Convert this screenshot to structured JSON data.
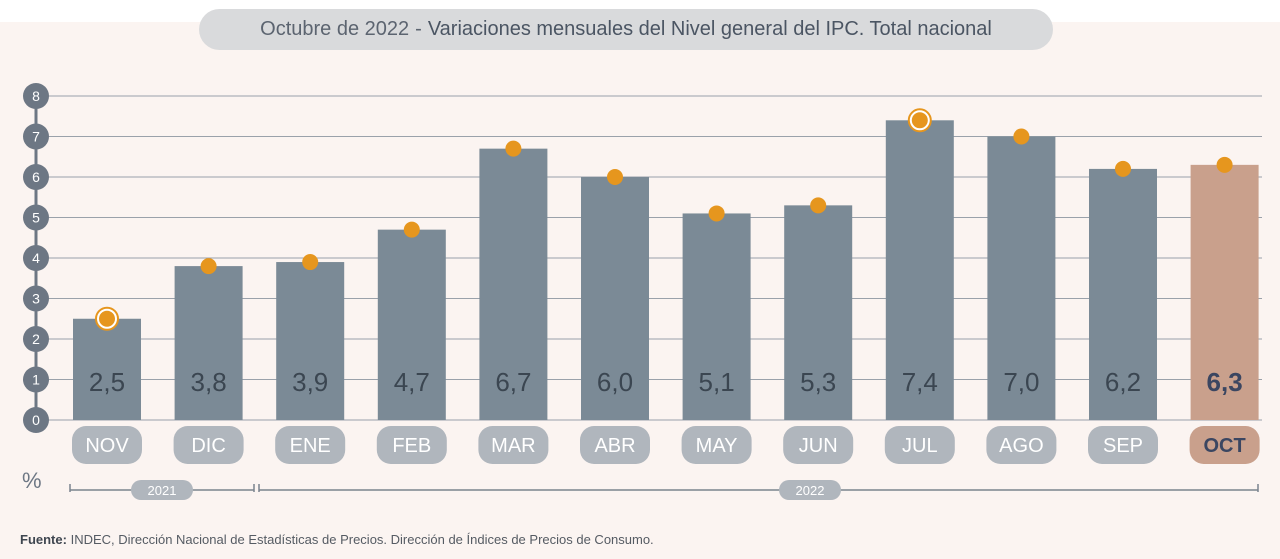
{
  "header": {
    "date": "Octubre de 2022",
    "separator": "-",
    "title": "Variaciones mensuales del Nivel general del IPC. Total nacional"
  },
  "chart_data": {
    "type": "bar",
    "categories": [
      "NOV",
      "DIC",
      "ENE",
      "FEB",
      "MAR",
      "ABR",
      "MAY",
      "JUN",
      "JUL",
      "AGO",
      "SEP",
      "OCT"
    ],
    "values": [
      2.5,
      3.8,
      3.9,
      4.7,
      6.7,
      6.0,
      5.1,
      5.3,
      7.4,
      7.0,
      6.2,
      6.3
    ],
    "value_labels": [
      "2,5",
      "3,8",
      "3,9",
      "4,7",
      "6,7",
      "6,0",
      "5,1",
      "5,3",
      "7,4",
      "7,0",
      "6,2",
      "6,3"
    ],
    "highlighted_index": 11,
    "marker_ring_indices": [
      0,
      8
    ],
    "ylabel": "%",
    "ylim": [
      0,
      8
    ],
    "yticks": [
      "0",
      "1",
      "2",
      "3",
      "4",
      "5",
      "6",
      "7",
      "8"
    ],
    "grid": true,
    "year_groups": [
      {
        "label": "2021",
        "start_index": 0,
        "end_index": 1
      },
      {
        "label": "2022",
        "start_index": 2,
        "end_index": 11
      }
    ],
    "colors": {
      "bar": "#7b8a96",
      "bar_highlight": "#c9a08c",
      "marker": "#e6961e",
      "month_pill": "#b0b6bd",
      "month_pill_highlight": "#c9a08c",
      "tick_circle": "#6d7784",
      "value_text": "#3b4651",
      "value_text_highlight": "#3b4661"
    }
  },
  "footer": {
    "source_label": "Fuente:",
    "source_text": "INDEC, Dirección Nacional de Estadísticas de Precios. Dirección de Índices de Precios de Consumo."
  }
}
